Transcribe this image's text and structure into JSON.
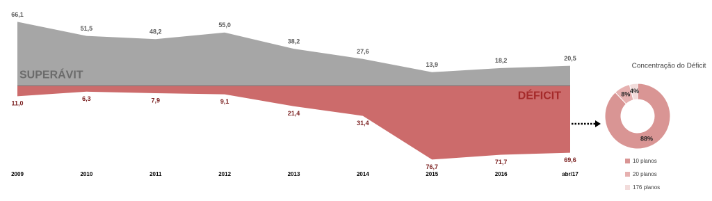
{
  "chart_data": [
    {
      "type": "area",
      "categories": [
        "2009",
        "2010",
        "2011",
        "2012",
        "2013",
        "2014",
        "2015",
        "2016",
        "abr/17"
      ],
      "series": [
        {
          "name": "SUPERÁVIT",
          "color": "#a6a6a6",
          "label_color": "#595959",
          "direction": "up",
          "values": [
            66.1,
            51.5,
            48.2,
            55.0,
            38.2,
            27.6,
            13.9,
            18.2,
            20.5
          ],
          "value_labels": [
            "66,1",
            "51,5",
            "48,2",
            "55,0",
            "38,2",
            "27,6",
            "13,9",
            "18,2",
            "20,5"
          ]
        },
        {
          "name": "DÉFICIT",
          "color": "#cc6b6b",
          "label_color": "#7a1f1f",
          "direction": "down",
          "values": [
            11.0,
            6.3,
            7.9,
            9.1,
            21.4,
            31.4,
            76.7,
            71.7,
            69.6
          ],
          "value_labels": [
            "11,0",
            "6,3",
            "7,9",
            "9,1",
            "21,4",
            "31,4",
            "76,7",
            "71,7",
            "69,6"
          ]
        }
      ],
      "ylim": [
        -80,
        70
      ]
    },
    {
      "type": "donut",
      "title": "Concentração do Déficit",
      "categories": [
        "10 planos",
        "20 planos",
        "176 planos"
      ],
      "values": [
        88,
        8,
        4
      ],
      "value_labels": [
        "88%",
        "8%",
        "4%"
      ],
      "colors": [
        "#d99594",
        "#e6b1b0",
        "#f2dcdb"
      ]
    }
  ]
}
